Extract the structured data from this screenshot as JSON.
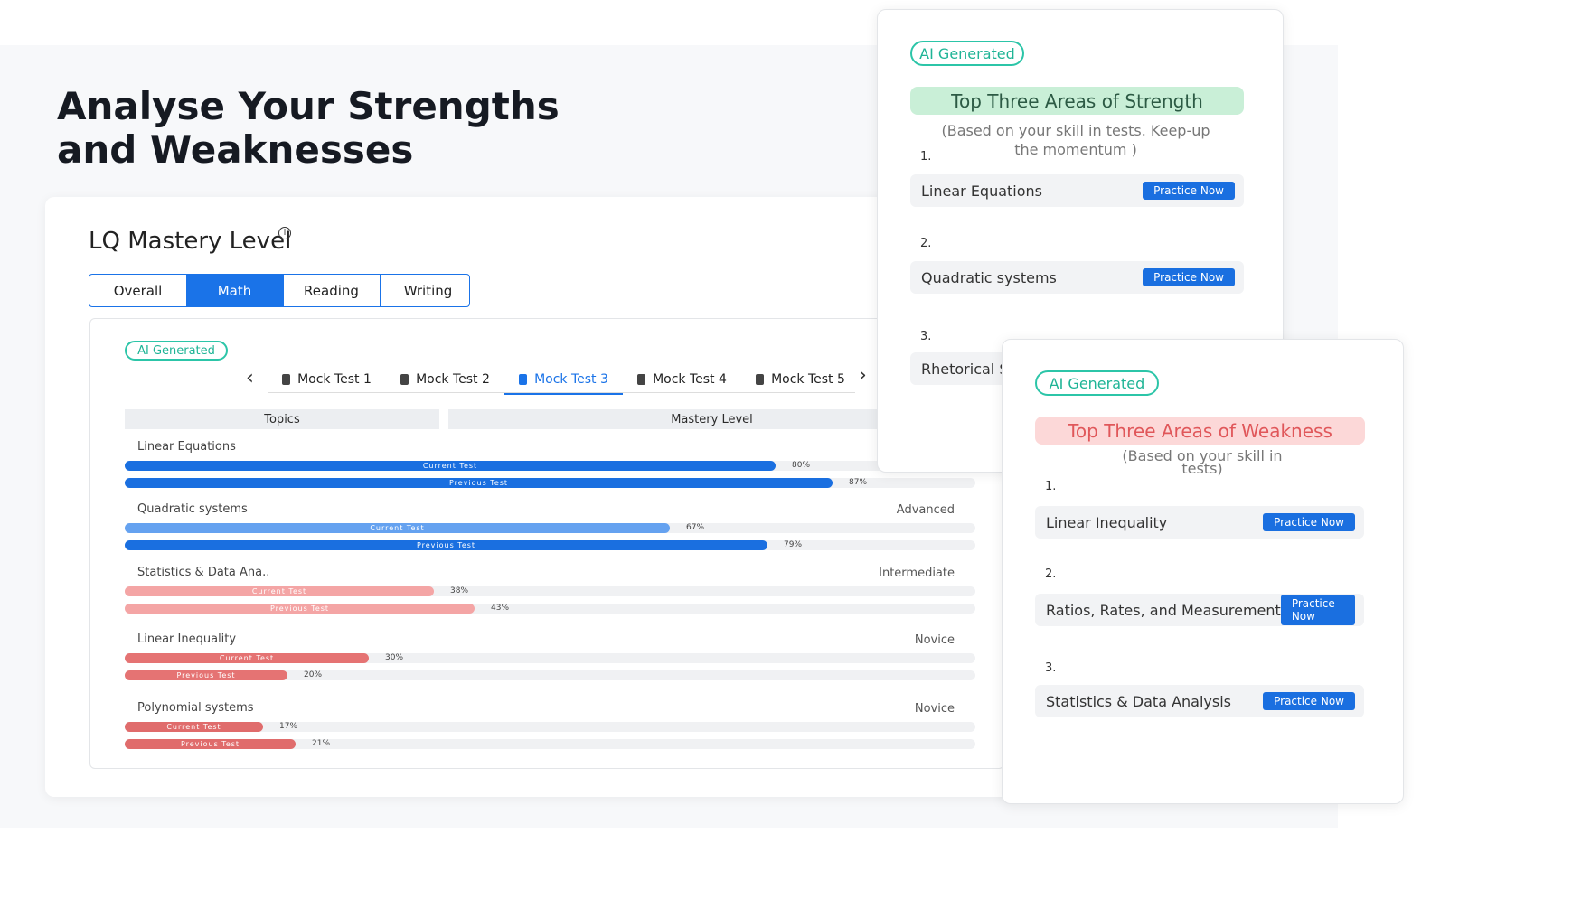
{
  "header": {
    "title": "Analyse Your Strengths and Weaknesses"
  },
  "mastery": {
    "title": "LQ Mastery Level",
    "subject_tabs": [
      "Overall",
      "Math",
      "Reading",
      "Writing"
    ],
    "active_subject": 1,
    "badge": "AI Generated",
    "tests": [
      "Mock Test 1",
      "Mock Test 2",
      "Mock Test 3",
      "Mock Test 4",
      "Mock Test 5"
    ],
    "active_test": 2,
    "columns": [
      "Topics",
      "Mastery Level"
    ],
    "topics": [
      {
        "name": "Linear Equations",
        "current": {
          "label": "Current Test",
          "value": 80,
          "value_label": "80%",
          "color": "#1a6fe0"
        },
        "previous": {
          "label": "Previous Test",
          "value": 87,
          "value_label": "87%",
          "color": "#1a6fe0"
        }
      },
      {
        "name": "Quadratic systems",
        "level": "Advanced",
        "current": {
          "label": "Current Test",
          "value": 67,
          "value_label": "67%",
          "color": "#65a2f0"
        },
        "previous": {
          "label": "Previous Test",
          "value": 79,
          "value_label": "79%",
          "color": "#1a6fe0"
        }
      },
      {
        "name": "Statistics & Data Ana..",
        "level": "Intermediate",
        "current": {
          "label": "Current Test",
          "value": 38,
          "value_label": "38%",
          "color": "#f4a5a5"
        },
        "previous": {
          "label": "Previous Test",
          "value": 43,
          "value_label": "43%",
          "color": "#f4a5a5"
        }
      },
      {
        "name": "Linear Inequality",
        "level": "Novice",
        "current": {
          "label": "Current Test",
          "value": 30,
          "value_label": "30%",
          "color": "#e57373"
        },
        "previous": {
          "label": "Previous Test",
          "value": 20,
          "value_label": "20%",
          "color": "#e57373"
        }
      },
      {
        "name": "Polynomial systems",
        "level": "Novice",
        "current": {
          "label": "Current Test",
          "value": 17,
          "value_label": "17%",
          "color": "#e06c6c"
        },
        "previous": {
          "label": "Previous Test",
          "value": 21,
          "value_label": "21%",
          "color": "#e06c6c"
        }
      }
    ]
  },
  "strength": {
    "badge": "AI Generated",
    "title": "Top Three Areas of Strength",
    "subtitle": "(Based on your skill in tests. Keep-up the momentum )",
    "items": [
      {
        "index": "1.",
        "name": "Linear Equations",
        "button": "Practice Now"
      },
      {
        "index": "2.",
        "name": "Quadratic systems",
        "button": "Practice Now"
      },
      {
        "index": "3.",
        "name": "Rhetorical S"
      }
    ]
  },
  "weakness": {
    "badge": "AI Generated",
    "title": "Top Three Areas of Weakness",
    "subtitle": "(Based on your skill in tests)",
    "items": [
      {
        "index": "1.",
        "name": "Linear Inequality",
        "button": "Practice Now"
      },
      {
        "index": "2.",
        "name": "Ratios, Rates, and Measurement",
        "button": "Practice Now"
      },
      {
        "index": "3.",
        "name": "Statistics & Data Analysis",
        "button": "Practice Now"
      }
    ]
  }
}
